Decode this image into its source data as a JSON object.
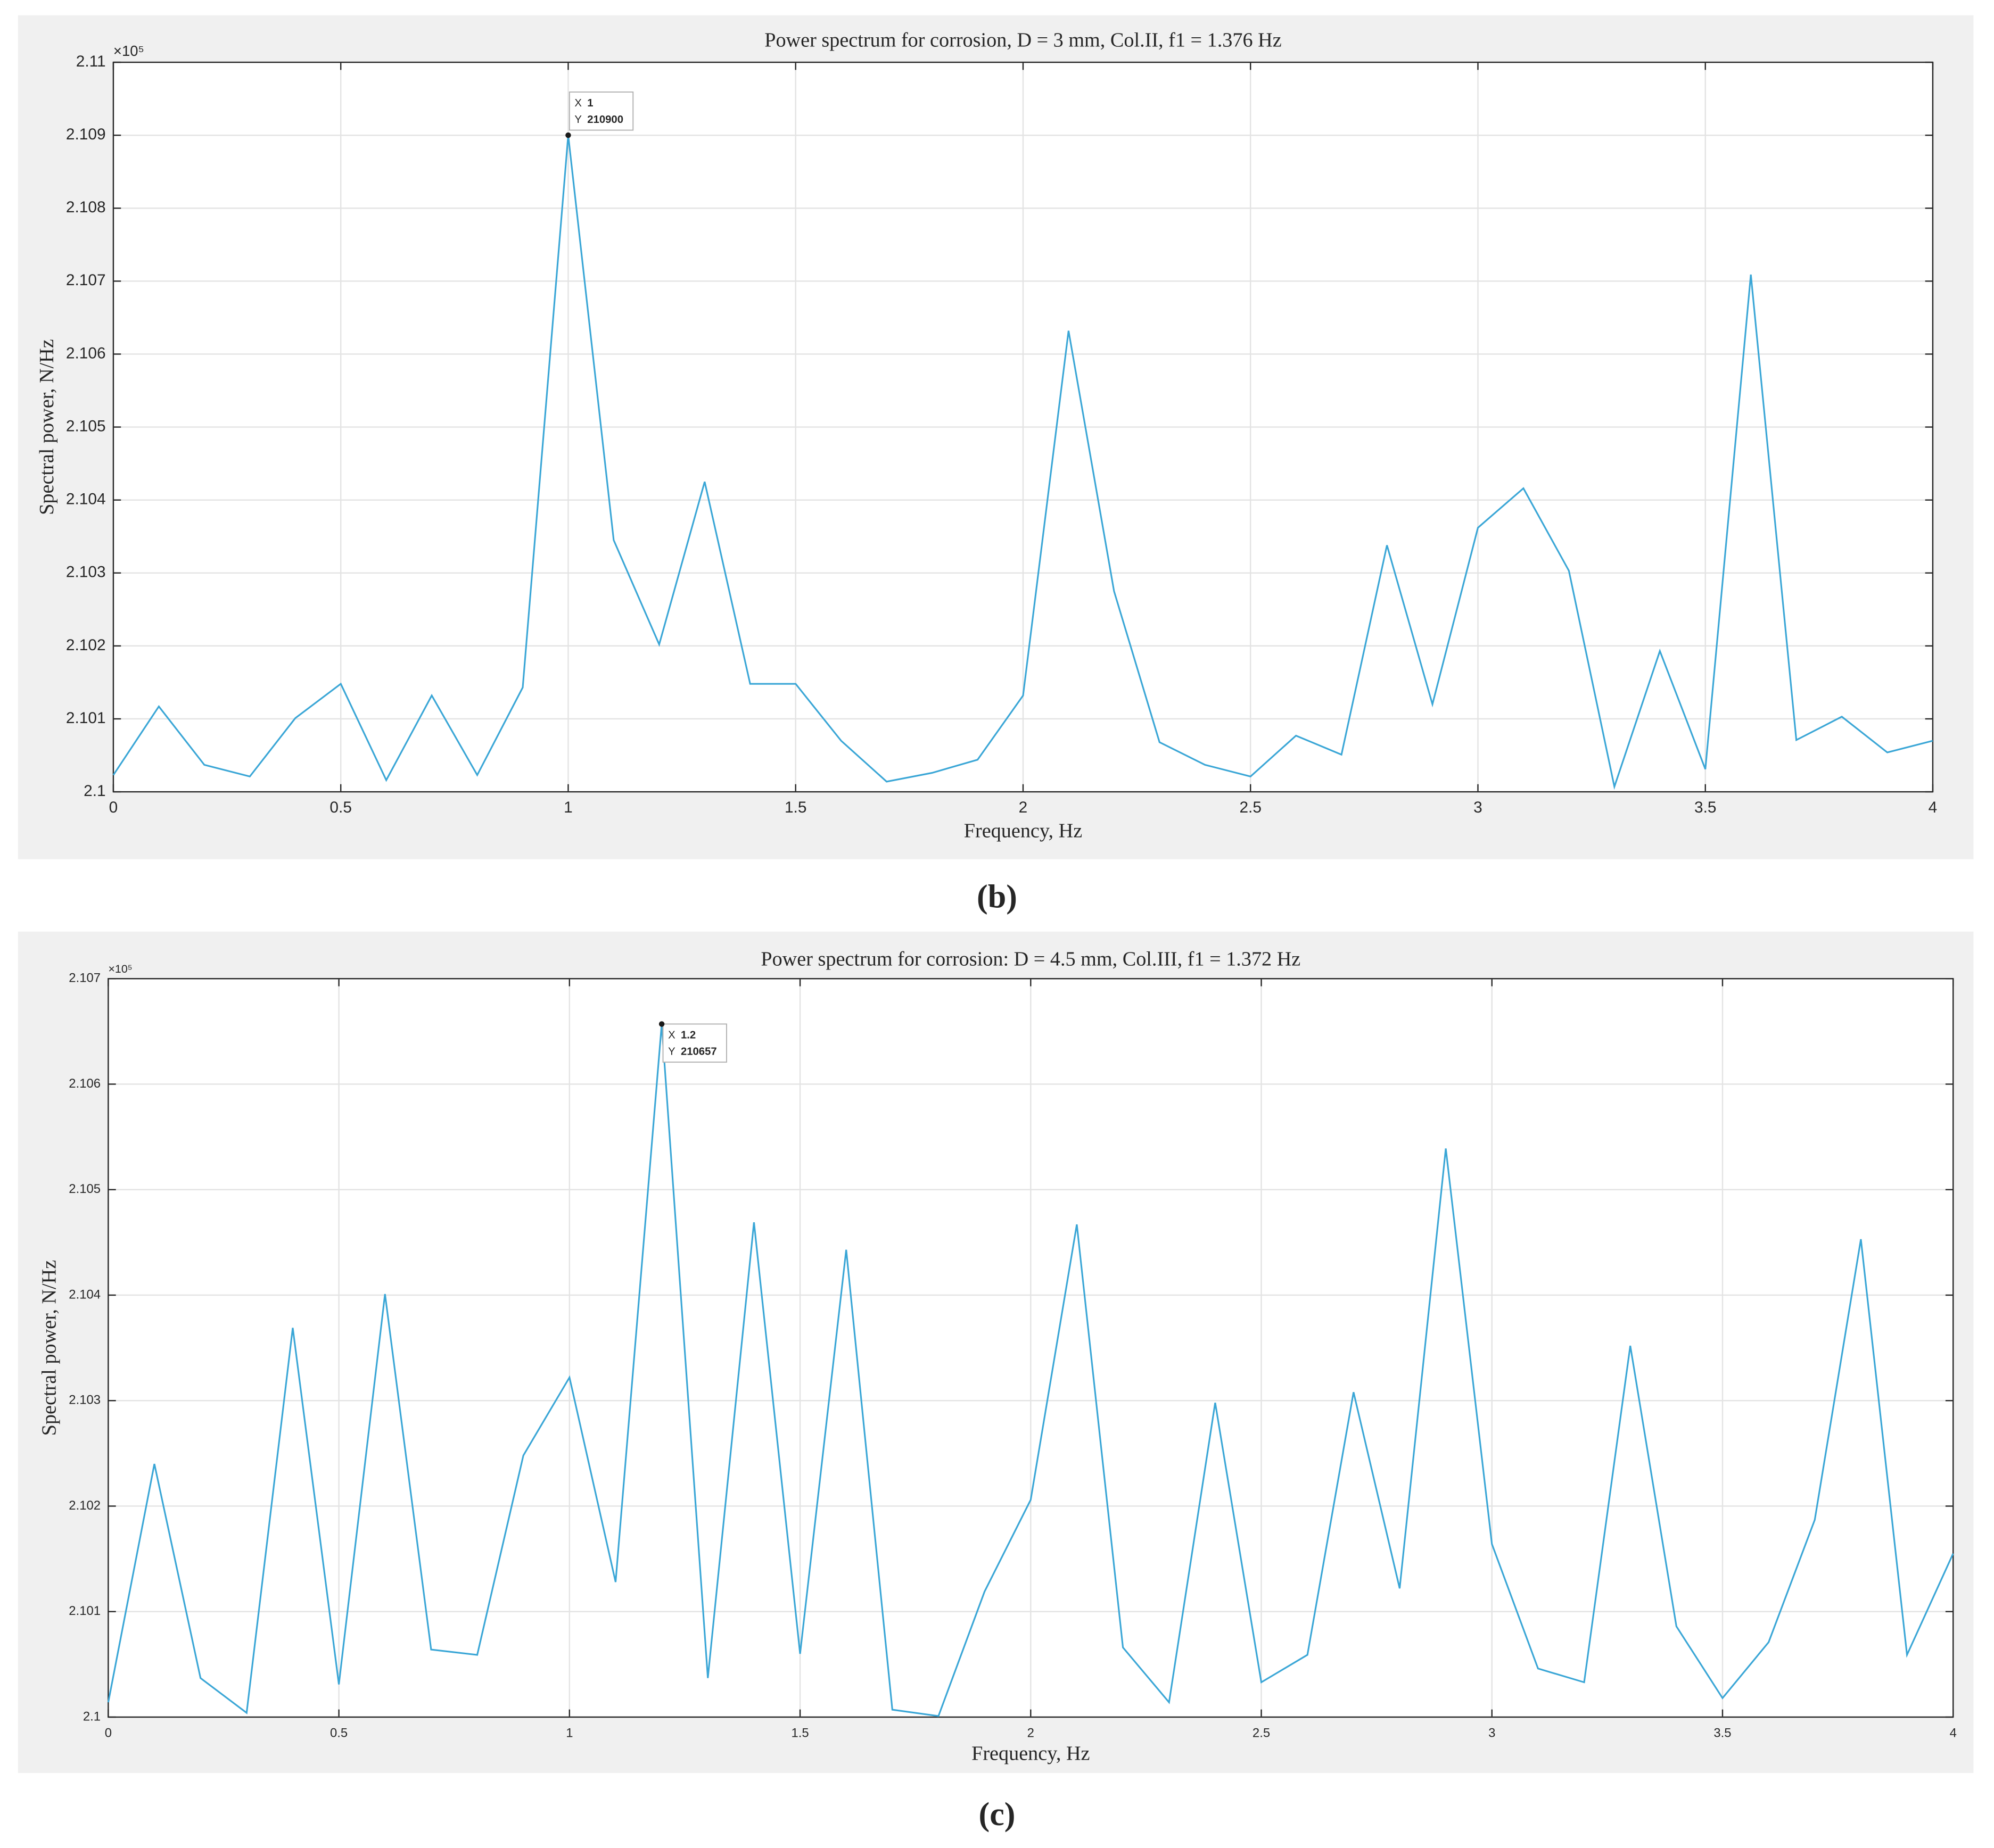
{
  "chart_data": [
    {
      "type": "line",
      "title": "Power spectrum for corrosion, D = 3 mm, Col.II, f1 = 1.376 Hz",
      "x_label": "Frequency, Hz",
      "y_label": "Spectral power, N/Hz",
      "y_exponent_label": "×10⁵",
      "caption": "(b)",
      "grid": true,
      "xlim": [
        0,
        4
      ],
      "xticks": [
        0,
        0.5,
        1,
        1.5,
        2,
        2.5,
        3,
        3.5,
        4
      ],
      "ylim": [
        210000,
        211000
      ],
      "yticks": [
        {
          "value": 210000,
          "label": "2.1"
        },
        {
          "value": 210100,
          "label": "2.101"
        },
        {
          "value": 210200,
          "label": "2.102"
        },
        {
          "value": 210300,
          "label": "2.103"
        },
        {
          "value": 210400,
          "label": "2.104"
        },
        {
          "value": 210500,
          "label": "2.105"
        },
        {
          "value": 210600,
          "label": "2.106"
        },
        {
          "value": 210700,
          "label": "2.107"
        },
        {
          "value": 210800,
          "label": "2.108"
        },
        {
          "value": 210900,
          "label": "2.109"
        },
        {
          "value": 211000,
          "label": "2.11"
        }
      ],
      "x": [
        0,
        0.1,
        0.2,
        0.3,
        0.4,
        0.5,
        0.6,
        0.7,
        0.8,
        0.9,
        1,
        1.1,
        1.2,
        1.3,
        1.4,
        1.5,
        1.6,
        1.7,
        1.8,
        1.9,
        2,
        2.1,
        2.2,
        2.3,
        2.4,
        2.5,
        2.6,
        2.7,
        2.8,
        2.9,
        3,
        3.1,
        3.2,
        3.3,
        3.4,
        3.5,
        3.6,
        3.7,
        3.8,
        3.9,
        4
      ],
      "series": [
        {
          "color": "#3aa6d6",
          "values": [
            210023,
            210117,
            210037,
            210021,
            210101,
            210148,
            210016,
            210132,
            210023,
            210143,
            210900,
            210345,
            210202,
            210425,
            210148,
            210148,
            210070,
            210014,
            210026,
            210044,
            210132,
            210632,
            210275,
            210068,
            210037,
            210021,
            210077,
            210051,
            210338,
            210120,
            210362,
            210416,
            210303,
            210007,
            210193,
            210031,
            210709,
            210071,
            210103,
            210054,
            210070
          ]
        }
      ],
      "annotation": {
        "x_name": "X",
        "x": 1,
        "y_name": "Y",
        "y": 210900
      }
    },
    {
      "type": "line",
      "title": "Power spectrum for corrosion: D = 4.5 mm, Col.III, f1 = 1.372 Hz",
      "x_label": "Frequency, Hz",
      "y_label": "Spectral power, N/Hz",
      "y_exponent_label": "×10⁵",
      "caption": "(c)",
      "grid": true,
      "xlim": [
        0,
        4
      ],
      "xticks": [
        0,
        0.5,
        1,
        1.5,
        2,
        2.5,
        3,
        3.5,
        4
      ],
      "ylim": [
        210000,
        210700
      ],
      "yticks": [
        {
          "value": 210000,
          "label": "2.1"
        },
        {
          "value": 210100,
          "label": "2.101"
        },
        {
          "value": 210200,
          "label": "2.102"
        },
        {
          "value": 210300,
          "label": "2.103"
        },
        {
          "value": 210400,
          "label": "2.104"
        },
        {
          "value": 210500,
          "label": "2.105"
        },
        {
          "value": 210600,
          "label": "2.106"
        },
        {
          "value": 210700,
          "label": "2.107"
        }
      ],
      "x": [
        0,
        0.1,
        0.2,
        0.3,
        0.4,
        0.5,
        0.6,
        0.7,
        0.8,
        0.9,
        1,
        1.1,
        1.2,
        1.3,
        1.4,
        1.5,
        1.6,
        1.7,
        1.8,
        1.9,
        2,
        2.1,
        2.2,
        2.3,
        2.4,
        2.5,
        2.6,
        2.7,
        2.8,
        2.9,
        3,
        3.1,
        3.2,
        3.3,
        3.4,
        3.5,
        3.6,
        3.7,
        3.8,
        3.9,
        4
      ],
      "series": [
        {
          "color": "#3aa6d6",
          "values": [
            210014,
            210240,
            210037,
            210004,
            210369,
            210031,
            210401,
            210064,
            210059,
            210248,
            210322,
            210128,
            210657,
            210037,
            210469,
            210060,
            210443,
            210007,
            210001,
            210119,
            210206,
            210467,
            210066,
            210014,
            210298,
            210033,
            210059,
            210308,
            210122,
            210539,
            210164,
            210046,
            210033,
            210352,
            210086,
            210018,
            210071,
            210187,
            210453,
            210059,
            210155
          ]
        }
      ],
      "annotation": {
        "x_name": "X",
        "x": 1.2,
        "y_name": "Y",
        "y": 210657
      }
    }
  ]
}
